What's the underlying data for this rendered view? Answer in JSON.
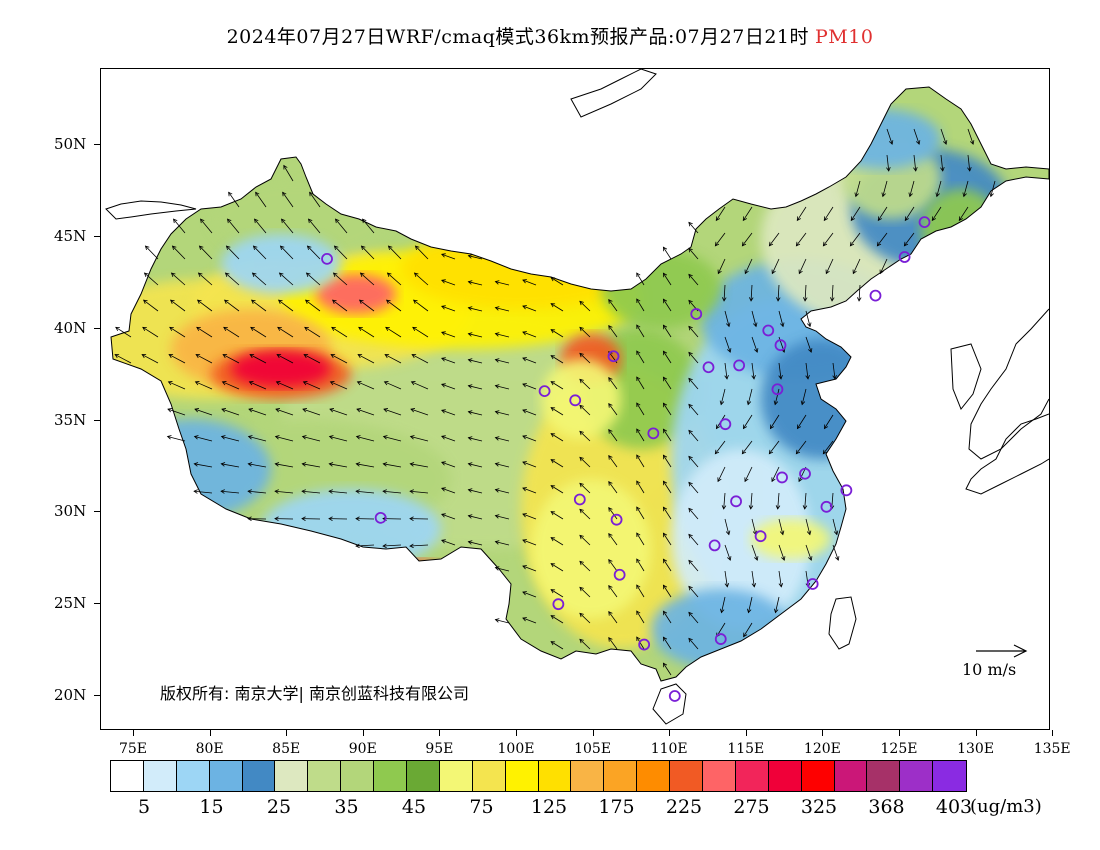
{
  "header": {
    "title": "2024年07月27日WRF/cmaq模式36km预报产品:07月27日21时",
    "pollutant": "PM10"
  },
  "axes": {
    "lat_labels": [
      "50N",
      "45N",
      "40N",
      "35N",
      "30N",
      "25N",
      "20N"
    ],
    "lon_labels": [
      "75E",
      "80E",
      "85E",
      "90E",
      "95E",
      "100E",
      "105E",
      "110E",
      "115E",
      "120E",
      "125E",
      "130E",
      "135E"
    ]
  },
  "colorbar": {
    "colors": [
      "#ffffff",
      "#d2ecfa",
      "#9dd6f5",
      "#6cb3e3",
      "#4289c4",
      "#dde8c0",
      "#bfdc8a",
      "#b3d67a",
      "#8fc94f",
      "#6aa934",
      "#f3f775",
      "#f4e44f",
      "#fff200",
      "#ffe000",
      "#f9b445",
      "#fba424",
      "#fe8c00",
      "#f15a24",
      "#fe6466",
      "#f2255a",
      "#f00039",
      "#fe0000",
      "#cb1778",
      "#a63168",
      "#9d2fc8",
      "#8a2be2"
    ],
    "labels": [
      "5",
      "15",
      "25",
      "35",
      "45",
      "75",
      "125",
      "175",
      "225",
      "275",
      "325",
      "368",
      "403"
    ],
    "unit": "(ug/m3)"
  },
  "copyright": "版权所有: 南京大学| 南京创蓝科技有限公司",
  "reference_vector": {
    "label": "10 m/s"
  },
  "stations": [
    {
      "lon": 87.6,
      "lat": 43.8
    },
    {
      "lon": 101.8,
      "lat": 36.6
    },
    {
      "lon": 103.8,
      "lat": 36.1
    },
    {
      "lon": 106.3,
      "lat": 38.5
    },
    {
      "lon": 108.9,
      "lat": 34.3
    },
    {
      "lon": 104.1,
      "lat": 30.7
    },
    {
      "lon": 106.5,
      "lat": 29.6
    },
    {
      "lon": 106.7,
      "lat": 26.6
    },
    {
      "lon": 102.7,
      "lat": 25.0
    },
    {
      "lon": 108.3,
      "lat": 22.8
    },
    {
      "lon": 110.3,
      "lat": 20.0
    },
    {
      "lon": 113.3,
      "lat": 23.1
    },
    {
      "lon": 112.9,
      "lat": 28.2
    },
    {
      "lon": 114.3,
      "lat": 30.6
    },
    {
      "lon": 115.9,
      "lat": 28.7
    },
    {
      "lon": 117.3,
      "lat": 31.9
    },
    {
      "lon": 118.8,
      "lat": 32.1
    },
    {
      "lon": 120.2,
      "lat": 30.3
    },
    {
      "lon": 121.5,
      "lat": 31.2
    },
    {
      "lon": 119.3,
      "lat": 26.1
    },
    {
      "lon": 113.6,
      "lat": 34.8
    },
    {
      "lon": 117.0,
      "lat": 36.7
    },
    {
      "lon": 114.5,
      "lat": 38.0
    },
    {
      "lon": 112.5,
      "lat": 37.9
    },
    {
      "lon": 111.7,
      "lat": 40.8
    },
    {
      "lon": 116.4,
      "lat": 39.9
    },
    {
      "lon": 117.2,
      "lat": 39.1
    },
    {
      "lon": 123.4,
      "lat": 41.8
    },
    {
      "lon": 125.3,
      "lat": 43.9
    },
    {
      "lon": 126.6,
      "lat": 45.8
    },
    {
      "lon": 91.1,
      "lat": 29.7
    }
  ]
}
